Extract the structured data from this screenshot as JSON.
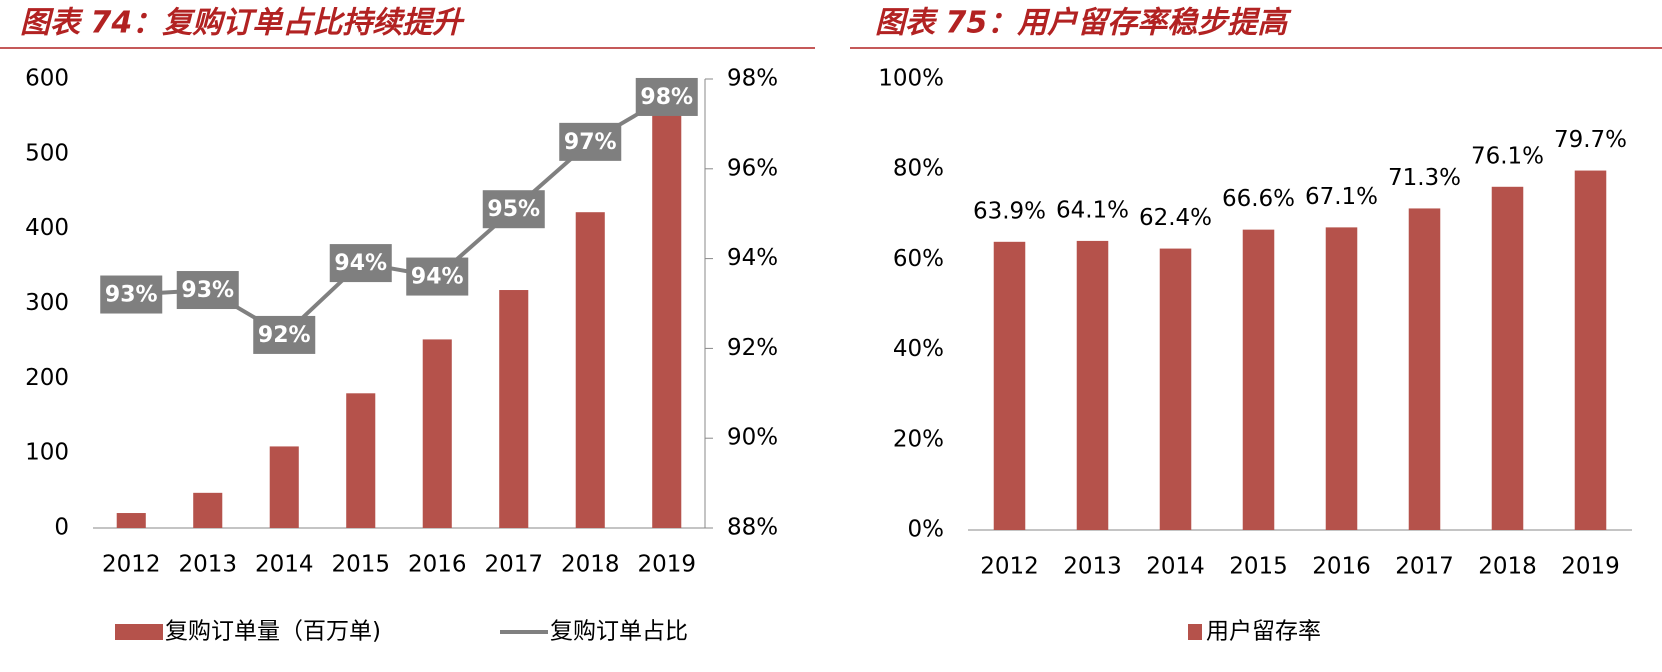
{
  "chart_data": [
    {
      "type": "combo",
      "title": "图表 74：复购订单占比持续提升",
      "categories": [
        "2012",
        "2013",
        "2014",
        "2015",
        "2016",
        "2017",
        "2018",
        "2019"
      ],
      "series": [
        {
          "name": "复购订单量（百万单)",
          "type": "bar",
          "color": "#b5524b",
          "values": [
            20,
            47,
            109,
            180,
            252,
            318,
            422,
            560
          ]
        },
        {
          "name": "复购订单占比",
          "type": "line",
          "axis": "y2",
          "color": "#808080",
          "values": [
            93.2,
            93.3,
            92.3,
            93.9,
            93.6,
            95.1,
            96.6,
            97.6
          ],
          "value_labels": [
            "93%",
            "93%",
            "92%",
            "94%",
            "94%",
            "95%",
            "97%",
            "98%"
          ]
        }
      ],
      "ylim": [
        0,
        600
      ],
      "yticks": [
        0,
        100,
        200,
        300,
        400,
        500,
        600
      ],
      "y2lim": [
        88,
        98
      ],
      "y2ticks": [
        {
          "value": 88,
          "label": "88%"
        },
        {
          "value": 90,
          "label": "90%"
        },
        {
          "value": 92,
          "label": "92%"
        },
        {
          "value": 94,
          "label": "94%"
        },
        {
          "value": 96,
          "label": "96%"
        },
        {
          "value": 98,
          "label": "98%"
        }
      ]
    },
    {
      "type": "bar",
      "title": "图表 75：用户留存率稳步提高",
      "categories": [
        "2012",
        "2013",
        "2014",
        "2015",
        "2016",
        "2017",
        "2018",
        "2019"
      ],
      "series": [
        {
          "name": "用户留存率",
          "type": "bar",
          "color": "#b5524b",
          "values": [
            63.9,
            64.1,
            62.4,
            66.6,
            67.1,
            71.3,
            76.1,
            79.7
          ],
          "value_labels": [
            "63.9%",
            "64.1%",
            "62.4%",
            "66.6%",
            "67.1%",
            "71.3%",
            "76.1%",
            "79.7%"
          ]
        }
      ],
      "ylim": [
        0,
        100
      ],
      "yticks": [
        {
          "value": 0,
          "label": "0%"
        },
        {
          "value": 20,
          "label": "20%"
        },
        {
          "value": 40,
          "label": "40%"
        },
        {
          "value": 60,
          "label": "60%"
        },
        {
          "value": 80,
          "label": "80%"
        },
        {
          "value": 100,
          "label": "100%"
        }
      ]
    }
  ]
}
